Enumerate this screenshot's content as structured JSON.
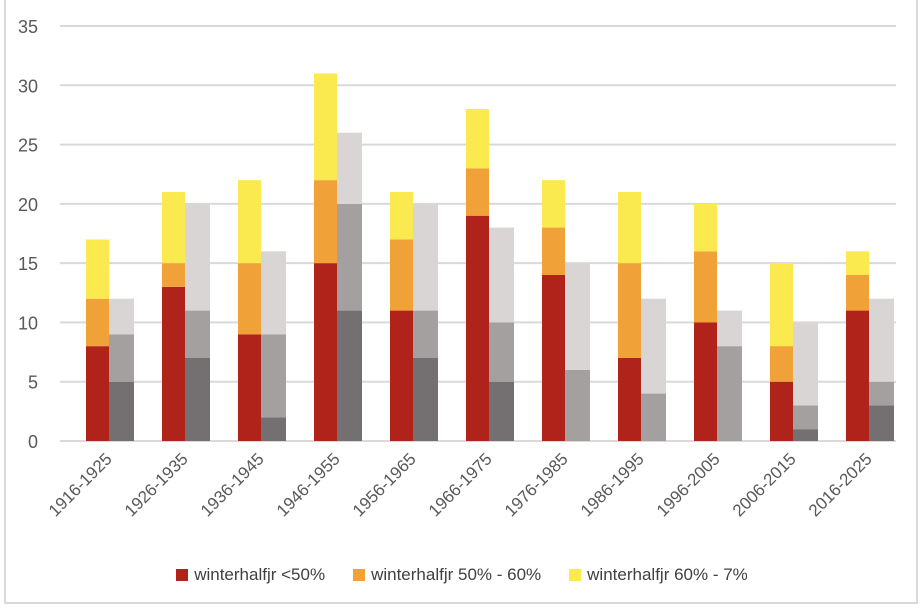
{
  "chart_data": {
    "type": "bar",
    "stacked": true,
    "grouped": true,
    "categories": [
      "1916-1925",
      "1926-1935",
      "1936-1945",
      "1946-1955",
      "1956-1965",
      "1966-1975",
      "1976-1985",
      "1986-1995",
      "1996-2005",
      "2006-2015",
      "2016-2025"
    ],
    "ylim": [
      0,
      35
    ],
    "yticks": [
      0,
      5,
      10,
      15,
      20,
      25,
      30,
      35
    ],
    "grid": true,
    "legend_position": "bottom",
    "stacks": [
      {
        "series": [
          {
            "name": "winterhalfjr <50%",
            "color": "#b0231b",
            "values": [
              8,
              13,
              9,
              15,
              11,
              19,
              14,
              7,
              10,
              5,
              11
            ]
          },
          {
            "name": "winterhalfjr 50% - 60%",
            "color": "#f0a238",
            "values": [
              4,
              2,
              6,
              7,
              6,
              4,
              4,
              8,
              6,
              3,
              3
            ]
          },
          {
            "name": "winterhalfjr 60% - 7%",
            "color": "#fbea4f",
            "values": [
              5,
              6,
              7,
              9,
              4,
              5,
              4,
              6,
              4,
              7,
              2
            ]
          }
        ]
      },
      {
        "series": [
          {
            "color": "#747071",
            "values": [
              5,
              7,
              2,
              11,
              7,
              5,
              0,
              0,
              0,
              1,
              3
            ]
          },
          {
            "color": "#a5a0a0",
            "values": [
              4,
              4,
              7,
              9,
              4,
              5,
              6,
              4,
              8,
              2,
              2
            ]
          },
          {
            "color": "#d9d5d5",
            "values": [
              3,
              9,
              7,
              6,
              9,
              8,
              9,
              8,
              3,
              7,
              7
            ]
          }
        ]
      }
    ]
  }
}
